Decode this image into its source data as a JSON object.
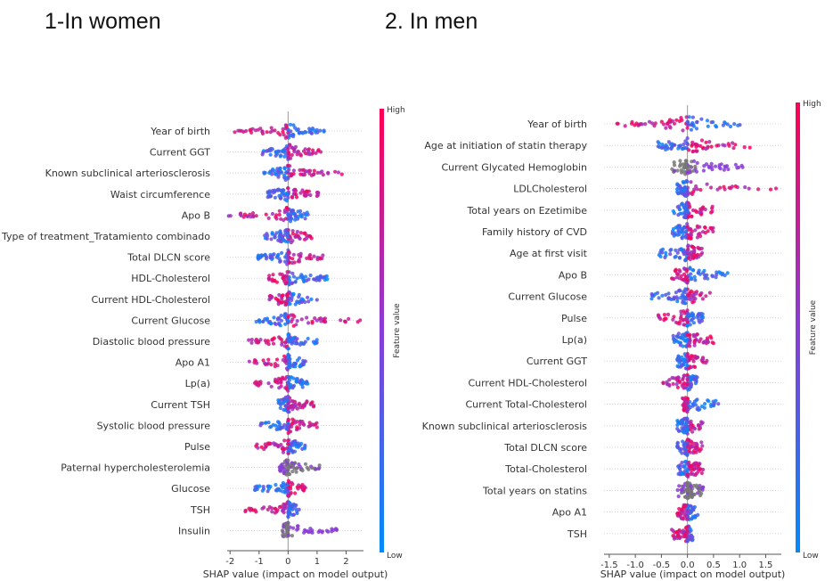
{
  "headings": {
    "left": "1-In women",
    "right": "2. In men"
  },
  "colors": {
    "high": "#ff0052",
    "mid": "#8a3cd6",
    "low": "#008bfb",
    "gray": "#777777"
  },
  "chart_data": [
    {
      "type": "scatter",
      "subtype": "shap-beeswarm",
      "xlabel": "SHAP value (impact on model output)",
      "xlim": [
        -2.1,
        2.6
      ],
      "xticks": [
        -2,
        -1,
        0,
        1,
        2
      ],
      "colorbar": {
        "label": "Feature value",
        "high": "High",
        "low": "Low"
      },
      "features": [
        {
          "name": "Year of birth",
          "min": -1.9,
          "max": 1.4,
          "color": "lowright"
        },
        {
          "name": "Current GGT",
          "min": -0.9,
          "max": 1.2,
          "color": "highright"
        },
        {
          "name": "Known subclinical arteriosclerosis",
          "min": -0.9,
          "max": 2.0,
          "color": "highright"
        },
        {
          "name": "Waist circumference",
          "min": -0.7,
          "max": 1.1,
          "color": "highright"
        },
        {
          "name": "Apo B",
          "min": -2.1,
          "max": 0.7,
          "color": "highleft"
        },
        {
          "name": "Type of treatment_Tratamiento combinado",
          "min": -0.9,
          "max": 1.0,
          "color": "highright"
        },
        {
          "name": "Total DLCN score",
          "min": -1.1,
          "max": 1.2,
          "color": "highright"
        },
        {
          "name": "HDL-Cholesterol",
          "min": -0.7,
          "max": 1.4,
          "color": "highleft"
        },
        {
          "name": "Current HDL-Cholesterol",
          "min": -0.7,
          "max": 1.2,
          "color": "highleft"
        },
        {
          "name": "Current Glucose",
          "min": -1.1,
          "max": 2.5,
          "color": "highright"
        },
        {
          "name": "Diastolic blood pressure",
          "min": -1.5,
          "max": 1.0,
          "color": "highleft"
        },
        {
          "name": "Apo A1",
          "min": -1.4,
          "max": 0.6,
          "color": "highleft"
        },
        {
          "name": "Lp(a)",
          "min": -1.2,
          "max": 0.7,
          "color": "highleft"
        },
        {
          "name": "Current TSH",
          "min": -0.4,
          "max": 1.0,
          "color": "highright"
        },
        {
          "name": "Systolic blood pressure",
          "min": -1.0,
          "max": 1.0,
          "color": "highright"
        },
        {
          "name": "Pulse",
          "min": -1.2,
          "max": 0.6,
          "color": "highleft"
        },
        {
          "name": "Paternal hypercholesterolemia",
          "min": -0.3,
          "max": 1.1,
          "color": "grayright"
        },
        {
          "name": "Glucose",
          "min": -1.2,
          "max": 0.6,
          "color": "lowleft"
        },
        {
          "name": "TSH",
          "min": -1.5,
          "max": 0.4,
          "color": "highleft"
        },
        {
          "name": "Insulin",
          "min": -0.2,
          "max": 1.8,
          "color": "grayleft"
        }
      ]
    },
    {
      "type": "scatter",
      "subtype": "shap-beeswarm",
      "xlabel": "SHAP value (impact on model output)",
      "xlim": [
        -1.6,
        1.8
      ],
      "xticks": [
        -1.5,
        -1.0,
        -0.5,
        0.0,
        0.5,
        1.0,
        1.5
      ],
      "colorbar": {
        "label": "Feature value",
        "high": "High",
        "low": "Low"
      },
      "features": [
        {
          "name": "Year of birth",
          "min": -1.4,
          "max": 1.1,
          "color": "lowright"
        },
        {
          "name": "Age at initiation of statin therapy",
          "min": -0.6,
          "max": 1.2,
          "color": "highright"
        },
        {
          "name": "Current Glycated Hemoglobin",
          "min": -0.3,
          "max": 1.1,
          "color": "grayleft"
        },
        {
          "name": "LDLCholesterol",
          "min": -0.2,
          "max": 1.7,
          "color": "highright"
        },
        {
          "name": "Total years on Ezetimibe",
          "min": -0.3,
          "max": 0.5,
          "color": "highright"
        },
        {
          "name": "Family history of CVD",
          "min": -0.3,
          "max": 0.5,
          "color": "highright"
        },
        {
          "name": "Age at first visit",
          "min": -0.6,
          "max": 0.3,
          "color": "highright"
        },
        {
          "name": "Apo B",
          "min": -0.3,
          "max": 0.8,
          "color": "highleft"
        },
        {
          "name": "Current Glucose",
          "min": -0.7,
          "max": 0.6,
          "color": "highright"
        },
        {
          "name": "Pulse",
          "min": -0.6,
          "max": 0.3,
          "color": "highleft"
        },
        {
          "name": "Lp(a)",
          "min": -0.3,
          "max": 0.5,
          "color": "highright"
        },
        {
          "name": "Current GGT",
          "min": -0.2,
          "max": 0.4,
          "color": "highright"
        },
        {
          "name": "Current HDL-Cholesterol",
          "min": -0.5,
          "max": 0.2,
          "color": "highleft"
        },
        {
          "name": "Current Total-Cholesterol",
          "min": -0.1,
          "max": 0.6,
          "color": "lowright"
        },
        {
          "name": "Known subclinical arteriosclerosis",
          "min": -0.2,
          "max": 0.3,
          "color": "highright"
        },
        {
          "name": "Total DLCN score",
          "min": -0.2,
          "max": 0.3,
          "color": "highright"
        },
        {
          "name": "Total-Cholesterol",
          "min": -0.2,
          "max": 0.3,
          "color": "highright"
        },
        {
          "name": "Total years on statins",
          "min": -0.2,
          "max": 0.3,
          "color": "grayright"
        },
        {
          "name": "Apo A1",
          "min": -0.2,
          "max": 0.2,
          "color": "highleft"
        },
        {
          "name": "TSH",
          "min": -0.3,
          "max": 0.1,
          "color": "highleft"
        }
      ]
    }
  ]
}
